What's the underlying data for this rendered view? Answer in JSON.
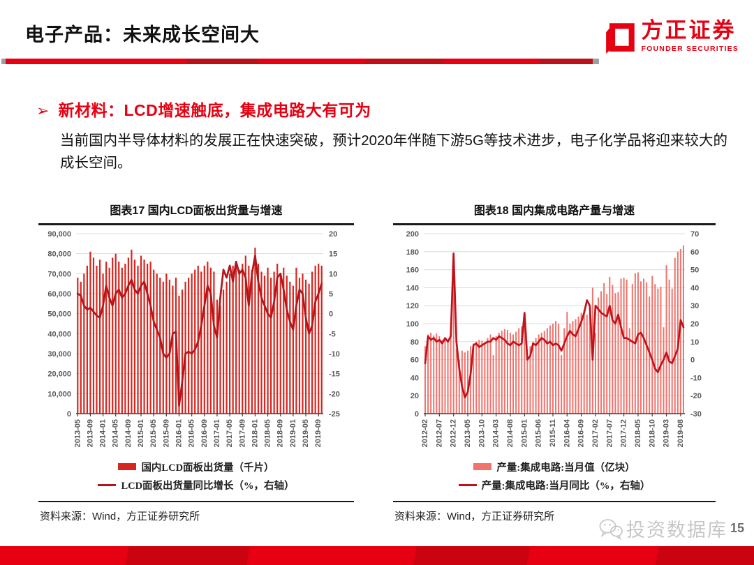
{
  "header": {
    "title": "电子产品：未来成长空间大",
    "logo_cn": "方正证券",
    "logo_en": "FOUNDER SECURITIES"
  },
  "bullet": {
    "marker": "➢",
    "text": "新材料：LCD增速触底，集成电路大有可为"
  },
  "paragraph": "当前国内半导体材料的发展正在快速突破，预计2020年伴随下游5G等技术进步，电子化学品将迎来较大的成长空间。",
  "footer": {
    "watermark": "投资数据库",
    "page_number": "15"
  },
  "colors": {
    "accent_red": "#e60012",
    "lcd_bar": "#d7261f",
    "lcd_line": "#b2151a",
    "ic_bar": "#f0736d",
    "ic_line": "#c1121c",
    "grid": "#dcdcdc",
    "axis_text": "#595959"
  },
  "chart_data": [
    {
      "type": "bar",
      "title": "图表17 国内LCD面板出货量与增速",
      "source": "资料来源：Wind，方正证券研究所",
      "left_axis": {
        "min": 0,
        "max": 90000,
        "step": 10000,
        "labels": [
          "90,000",
          "80,000",
          "70,000",
          "60,000",
          "50,000",
          "40,000",
          "30,000",
          "20,000",
          "10,000",
          "0"
        ]
      },
      "right_axis": {
        "min": -25,
        "max": 20,
        "step": 5,
        "labels": [
          "20",
          "15",
          "10",
          "5",
          "0",
          "-5",
          "-10",
          "-15",
          "-20",
          "-25"
        ]
      },
      "x_tick_labels": [
        "2013-05",
        "2013-09",
        "2014-01",
        "2014-05",
        "2014-09",
        "2015-01",
        "2015-05",
        "2015-09",
        "2016-01",
        "2016-05",
        "2016-09",
        "2017-01",
        "2017-05",
        "2017-09",
        "2018-01",
        "2018-05",
        "2018-09",
        "2019-01",
        "2019-05",
        "2019-09"
      ],
      "x_tick_every": 4,
      "bars": {
        "name": "国内LCD面板出货量（千片）",
        "color": "#d7261f",
        "values": [
          68000,
          66000,
          70000,
          74000,
          81000,
          78000,
          74000,
          77000,
          70000,
          76000,
          73000,
          78000,
          80000,
          76000,
          73000,
          75000,
          78000,
          82000,
          77000,
          74000,
          79000,
          77000,
          75000,
          76000,
          72000,
          70000,
          68000,
          66000,
          70000,
          67000,
          64000,
          68000,
          59000,
          62000,
          66000,
          68000,
          70000,
          72000,
          74000,
          71000,
          74000,
          76000,
          73000,
          71000,
          57000,
          54000,
          62000,
          66000,
          70000,
          74000,
          76000,
          72000,
          75000,
          79000,
          74000,
          72000,
          83000,
          75000,
          71000,
          69000,
          73000,
          68000,
          71000,
          75000,
          70000,
          73000,
          69000,
          66000,
          64000,
          73000,
          68000,
          70000,
          67000,
          65000,
          71000,
          74000,
          75000,
          74000
        ]
      },
      "line": {
        "name": "LCD面板出货量同比增长（%，右轴）",
        "color": "#b2151a",
        "values": [
          5,
          4.5,
          2,
          1,
          1.5,
          0.5,
          -0.5,
          -1,
          2,
          7,
          4,
          2,
          5,
          6,
          4,
          5,
          7,
          8.5,
          6,
          5,
          7,
          8,
          5,
          2,
          -2,
          -4,
          -6,
          -10,
          -11,
          -10,
          -5,
          -4.5,
          -23,
          -17,
          -10,
          -9.5,
          -10,
          -9,
          -7,
          -3,
          2,
          7,
          5,
          -3,
          -6,
          4,
          11,
          9,
          12,
          8,
          13,
          10,
          11,
          9,
          2,
          10,
          14.5,
          8,
          4,
          2,
          0,
          -1,
          3,
          9,
          10,
          6,
          1,
          -2,
          -4,
          2,
          6,
          5,
          -1,
          -5,
          -3,
          3,
          5,
          7.5
        ]
      }
    },
    {
      "type": "bar",
      "title": "图表18 国内集成电路产量与增速",
      "source": "资料来源：Wind，方正证券研究所",
      "left_axis": {
        "min": 0,
        "max": 200,
        "step": 20,
        "labels": [
          "200",
          "180",
          "160",
          "140",
          "120",
          "100",
          "80",
          "60",
          "40",
          "20",
          "0"
        ]
      },
      "right_axis": {
        "min": -30,
        "max": 70,
        "step": 10,
        "labels": [
          "70",
          "60",
          "50",
          "40",
          "30",
          "20",
          "10",
          "0",
          "-10",
          "-20",
          "-30"
        ]
      },
      "x_tick_labels": [
        "2012-02",
        "2012-07",
        "2012-12",
        "2013-05",
        "2013-10",
        "2014-03",
        "2014-08",
        "2015-01",
        "2015-06",
        "2015-11",
        "2016-04",
        "2016-09",
        "2017-02",
        "2017-07",
        "2017-12",
        "2018-05",
        "2018-10",
        "2019-03",
        "2019-08"
      ],
      "x_tick_every": 5,
      "bars": {
        "name": "产量:集成电路:当月值（亿块）",
        "color": "#f0736d",
        "values": [
          75,
          88,
          90,
          87,
          89,
          86,
          82,
          83,
          82,
          86,
          177,
          72,
          60,
          70,
          68,
          70,
          75,
          78,
          80,
          82,
          81,
          79,
          84,
          88,
          65,
          86,
          90,
          92,
          94,
          93,
          90,
          88,
          91,
          95,
          97,
          112,
          60,
          75,
          80,
          84,
          88,
          90,
          92,
          95,
          98,
          100,
          103,
          100,
          65,
          95,
          113,
          100,
          103,
          105,
          108,
          112,
          115,
          110,
          120,
          140,
          90,
          129,
          136,
          145,
          133,
          152,
          143,
          134,
          135,
          150,
          151,
          149,
          95,
          144,
          156,
          157,
          147,
          150,
          146,
          130,
          153,
          144,
          139,
          141,
          96,
          165,
          149,
          139,
          173,
          180,
          183,
          187
        ]
      },
      "line": {
        "name": "产量:集成电路:当月同比（%，右轴）",
        "color": "#c1121c",
        "values": [
          -2,
          13,
          11,
          12,
          10,
          11,
          9,
          12,
          10,
          13,
          59,
          10,
          -5,
          -15,
          -21,
          -18,
          -8,
          8,
          9,
          7,
          8,
          9,
          10,
          10,
          12,
          11,
          13,
          12,
          11,
          9,
          8,
          10,
          9,
          8,
          9,
          26,
          0,
          2,
          9,
          8,
          10,
          12,
          11,
          9,
          10,
          8,
          9,
          8,
          5,
          9,
          13,
          16,
          14,
          13,
          17,
          21,
          26,
          33,
          30,
          0,
          30,
          28,
          26,
          25,
          24,
          30,
          22,
          20,
          25,
          18,
          12,
          12,
          11,
          10,
          9,
          14,
          15,
          12,
          8,
          4,
          0,
          -5,
          -7,
          -3,
          0,
          4,
          -1,
          -2,
          2,
          6,
          22,
          18
        ]
      }
    }
  ]
}
